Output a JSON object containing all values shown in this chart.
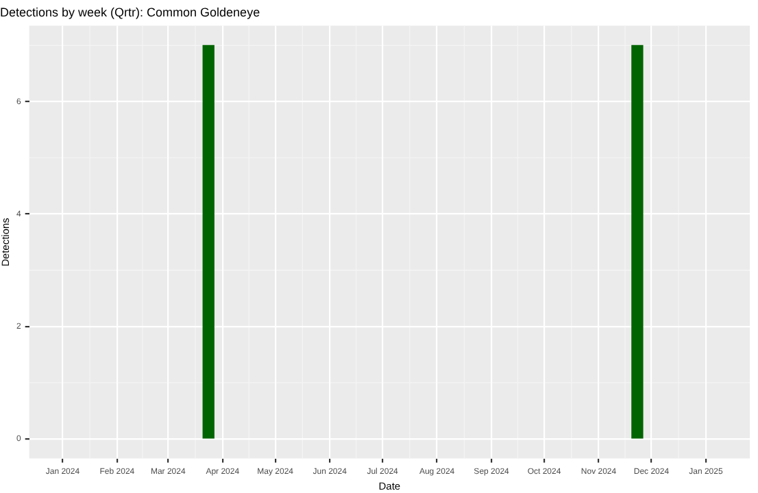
{
  "chart_data": {
    "type": "bar",
    "title": "Detections by week (Qrtr): Common Goldeneye",
    "xlabel": "Date",
    "ylabel": "Detections",
    "x": [
      "2024-03-24",
      "2024-11-23"
    ],
    "values": [
      7,
      7
    ],
    "color": "#006400",
    "xlim": [
      "2023-12-13",
      "2025-01-26"
    ],
    "xticks": [
      {
        "value": "2024-01-01",
        "label": "Jan 2024"
      },
      {
        "value": "2024-02-01",
        "label": "Feb 2024"
      },
      {
        "value": "2024-03-01",
        "label": "Mar 2024"
      },
      {
        "value": "2024-04-01",
        "label": "Apr 2024"
      },
      {
        "value": "2024-05-01",
        "label": "May 2024"
      },
      {
        "value": "2024-06-01",
        "label": "Jun 2024"
      },
      {
        "value": "2024-07-01",
        "label": "Jul 2024"
      },
      {
        "value": "2024-08-01",
        "label": "Aug 2024"
      },
      {
        "value": "2024-09-01",
        "label": "Sep 2024"
      },
      {
        "value": "2024-10-01",
        "label": "Oct 2024"
      },
      {
        "value": "2024-11-01",
        "label": "Nov 2024"
      },
      {
        "value": "2024-12-01",
        "label": "Dec 2024"
      },
      {
        "value": "2025-01-01",
        "label": "Jan 2025"
      }
    ],
    "ylim": [
      -0.35,
      7.35
    ],
    "yticks": [
      0,
      2,
      4,
      6
    ],
    "grid": true
  }
}
